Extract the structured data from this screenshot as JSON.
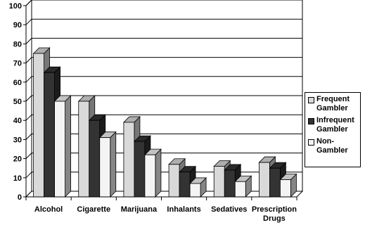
{
  "chart_data": {
    "type": "bar",
    "title": "",
    "xlabel": "",
    "ylabel": "",
    "ylim": [
      0,
      100
    ],
    "yticks": [
      0,
      10,
      20,
      30,
      40,
      50,
      60,
      70,
      80,
      90,
      100
    ],
    "grid": true,
    "legend_position": "right",
    "style": "3d",
    "categories": [
      "Alcohol",
      "Cigarette",
      "Marijuana",
      "Inhalants",
      "Sedatives",
      "Prescription\nDrugs"
    ],
    "series": [
      {
        "name": "Frequent\nGambler",
        "color": "#d9d9d9",
        "values": [
          75,
          50,
          39,
          17,
          16,
          18
        ]
      },
      {
        "name": "Infrequent\nGambler",
        "color": "#333333",
        "values": [
          65,
          40,
          29,
          13,
          14,
          15
        ]
      },
      {
        "name": "Non-\nGambler",
        "color": "#f4f4f4",
        "values": [
          50,
          31,
          22,
          7,
          8,
          9
        ]
      }
    ]
  }
}
